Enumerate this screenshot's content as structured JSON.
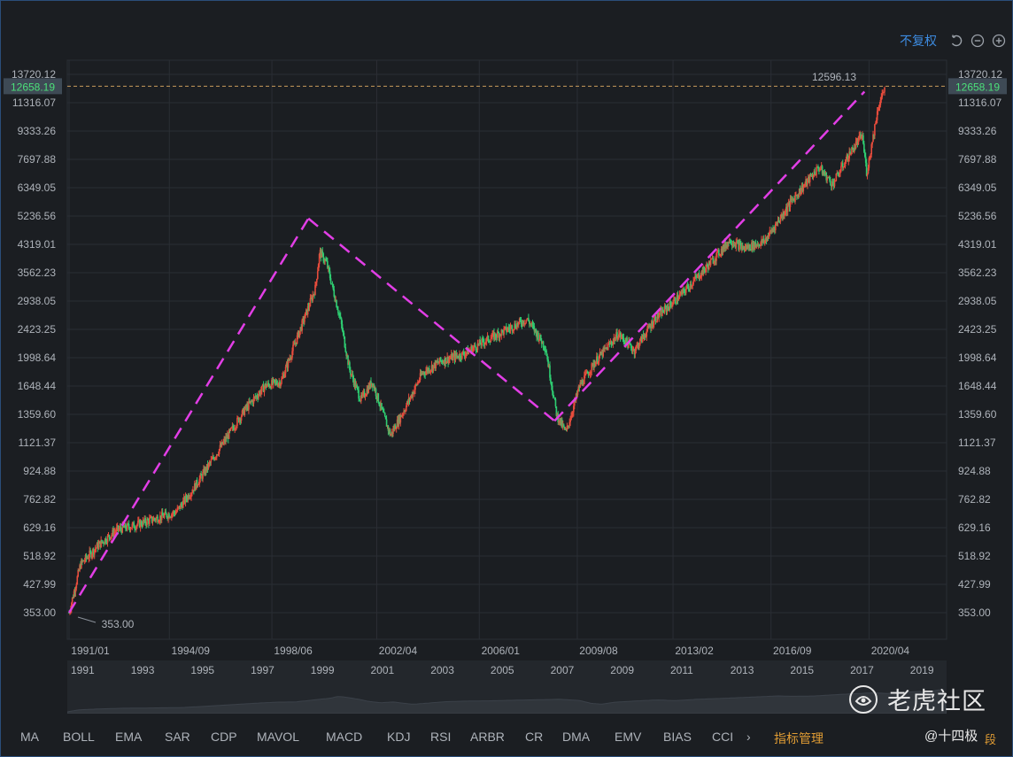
{
  "toolbar": {
    "adjust_label": "不复权",
    "icons": [
      "undo-icon",
      "zoom-out-icon",
      "zoom-in-icon"
    ]
  },
  "chart_data": {
    "type": "candlestick",
    "title": "",
    "y_scale": "log",
    "ylim": [
      353.0,
      13720.12
    ],
    "y_ticks": [
      "13720.12",
      "11316.07",
      "9333.26",
      "7697.88",
      "6349.05",
      "5236.56",
      "4319.01",
      "3562.23",
      "2938.05",
      "2423.25",
      "1998.64",
      "1648.44",
      "1359.60",
      "1121.37",
      "924.88",
      "762.82",
      "629.16",
      "518.92",
      "427.99",
      "353.00"
    ],
    "x_ticks": [
      "1991/01",
      "1994/09",
      "1998/06",
      "2002/04",
      "2006/01",
      "2009/08",
      "2013/02",
      "2016/09",
      "2020/04"
    ],
    "price_line": 12658.19,
    "high_label": "12596.13",
    "low_label": "353.00",
    "colors": {
      "up": "#e74c3c",
      "down": "#2ecc71",
      "trend": "#e23ee6",
      "price_line": "#c79b5c"
    },
    "trend_lines": [
      {
        "x": [
          "1991/01",
          "1999/10"
        ],
        "y": [
          353,
          5150
        ]
      },
      {
        "x": [
          "1999/10",
          "2008/10"
        ],
        "y": [
          5150,
          1300
        ]
      },
      {
        "x": [
          "2008/10",
          "2020/02"
        ],
        "y": [
          1300,
          12200
        ]
      }
    ],
    "series_points": [
      {
        "x": "1991/01",
        "y": 353
      },
      {
        "x": "1991/06",
        "y": 490
      },
      {
        "x": "1992/02",
        "y": 560
      },
      {
        "x": "1992/10",
        "y": 620
      },
      {
        "x": "1993/06",
        "y": 640
      },
      {
        "x": "1994/03",
        "y": 670
      },
      {
        "x": "1994/12",
        "y": 700
      },
      {
        "x": "1995/08",
        "y": 830
      },
      {
        "x": "1996/06",
        "y": 1050
      },
      {
        "x": "1997/06",
        "y": 1400
      },
      {
        "x": "1998/03",
        "y": 1650
      },
      {
        "x": "1998/10",
        "y": 1700
      },
      {
        "x": "1999/03",
        "y": 2100
      },
      {
        "x": "1999/09",
        "y": 2700
      },
      {
        "x": "2000/01",
        "y": 3200
      },
      {
        "x": "2000/03",
        "y": 4100
      },
      {
        "x": "2000/06",
        "y": 3800
      },
      {
        "x": "2000/12",
        "y": 2600
      },
      {
        "x": "2001/04",
        "y": 1850
      },
      {
        "x": "2001/09",
        "y": 1500
      },
      {
        "x": "2002/02",
        "y": 1700
      },
      {
        "x": "2002/07",
        "y": 1350
      },
      {
        "x": "2002/10",
        "y": 1180
      },
      {
        "x": "2003/04",
        "y": 1400
      },
      {
        "x": "2003/12",
        "y": 1800
      },
      {
        "x": "2004/08",
        "y": 1950
      },
      {
        "x": "2005/06",
        "y": 2050
      },
      {
        "x": "2006/04",
        "y": 2250
      },
      {
        "x": "2006/12",
        "y": 2400
      },
      {
        "x": "2007/10",
        "y": 2600
      },
      {
        "x": "2008/06",
        "y": 2150
      },
      {
        "x": "2008/11",
        "y": 1350
      },
      {
        "x": "2009/03",
        "y": 1200
      },
      {
        "x": "2009/09",
        "y": 1650
      },
      {
        "x": "2010/04",
        "y": 1950
      },
      {
        "x": "2011/02",
        "y": 2350
      },
      {
        "x": "2011/09",
        "y": 2100
      },
      {
        "x": "2012/06",
        "y": 2600
      },
      {
        "x": "2013/04",
        "y": 3000
      },
      {
        "x": "2014/04",
        "y": 3650
      },
      {
        "x": "2015/03",
        "y": 4450
      },
      {
        "x": "2015/09",
        "y": 4200
      },
      {
        "x": "2016/06",
        "y": 4400
      },
      {
        "x": "2017/06",
        "y": 5800
      },
      {
        "x": "2018/06",
        "y": 7300
      },
      {
        "x": "2018/12",
        "y": 6500
      },
      {
        "x": "2019/07",
        "y": 7900
      },
      {
        "x": "2020/01",
        "y": 9100
      },
      {
        "x": "2020/03",
        "y": 7000
      },
      {
        "x": "2020/08",
        "y": 11000
      },
      {
        "x": "2020/11",
        "y": 12600
      }
    ]
  },
  "navigator": {
    "years": [
      "1991",
      "1993",
      "1995",
      "1997",
      "1999",
      "2001",
      "2003",
      "2005",
      "2007",
      "2009",
      "2011",
      "2013",
      "2015",
      "2017",
      "2019"
    ]
  },
  "indicators": {
    "tabs": [
      "MA",
      "BOLL",
      "EMA",
      "SAR",
      "CDP",
      "MAVOL",
      "MACD",
      "KDJ",
      "RSI",
      "ARBR",
      "CR",
      "DMA",
      "EMV",
      "BIAS",
      "CCI"
    ],
    "manage_label": "指标管理",
    "more_icon": "chevron-right-icon"
  },
  "watermark": {
    "text": "老虎社区",
    "user": "@十四极",
    "tail": "段"
  }
}
